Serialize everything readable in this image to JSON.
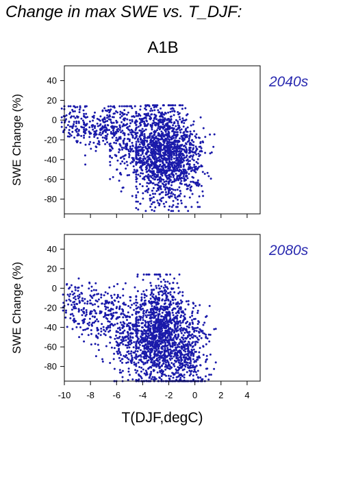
{
  "page": {
    "title": "Change in max SWE vs. T_DJF:",
    "scenario": "A1B"
  },
  "colors": {
    "points": "#1a1aaa",
    "period_label": "#2a2ab0"
  },
  "chart_data": [
    {
      "type": "scatter",
      "panel_label": "2040s",
      "ylabel": "SWE Change (%)",
      "xlabel": "",
      "xlim": [
        -10,
        5
      ],
      "ylim": [
        -95,
        55
      ],
      "xticks": [
        -10,
        -8,
        -6,
        -4,
        -2,
        0,
        2,
        4
      ],
      "yticks": [
        -80,
        -60,
        -40,
        -20,
        0,
        20,
        40
      ],
      "xtick_labels_shown": false,
      "clusters": [
        {
          "cx": -9.2,
          "cy": -2,
          "sx": 0.6,
          "sy": 12,
          "n": 90,
          "xmin": -10.2,
          "xmax": -7.5,
          "ymin": -55,
          "ymax": 14
        },
        {
          "cx": -7.0,
          "cy": -8,
          "sx": 0.9,
          "sy": 12,
          "n": 200,
          "xmin": -8.5,
          "xmax": -5.0,
          "ymin": -45,
          "ymax": 14
        },
        {
          "cx": -4.8,
          "cy": -22,
          "sx": 0.9,
          "sy": 20,
          "n": 280,
          "xmin": -6.5,
          "xmax": -3.0,
          "ymin": -82,
          "ymax": 14
        },
        {
          "cx": -2.6,
          "cy": -32,
          "sx": 1.0,
          "sy": 24,
          "n": 1150,
          "xmin": -4.5,
          "xmax": 0.6,
          "ymin": -92,
          "ymax": 15
        },
        {
          "cx": -0.8,
          "cy": -40,
          "sx": 0.8,
          "sy": 22,
          "n": 380,
          "xmin": -2.0,
          "xmax": 1.5,
          "ymin": -88,
          "ymax": 12
        }
      ]
    },
    {
      "type": "scatter",
      "panel_label": "2080s",
      "ylabel": "SWE Change (%)",
      "xlabel": "T(DJF,degC)",
      "xlim": [
        -10,
        5
      ],
      "ylim": [
        -95,
        55
      ],
      "xticks": [
        -10,
        -8,
        -6,
        -4,
        -2,
        0,
        2,
        4
      ],
      "yticks": [
        -80,
        -60,
        -40,
        -20,
        0,
        20,
        40
      ],
      "xtick_labels_shown": true,
      "clusters": [
        {
          "cx": -9.0,
          "cy": -18,
          "sx": 0.6,
          "sy": 14,
          "n": 110,
          "xmin": -10.1,
          "xmax": -7.5,
          "ymin": -50,
          "ymax": 10
        },
        {
          "cx": -7.0,
          "cy": -30,
          "sx": 0.8,
          "sy": 16,
          "n": 170,
          "xmin": -8.5,
          "xmax": -5.5,
          "ymin": -75,
          "ymax": 5
        },
        {
          "cx": -5.2,
          "cy": -50,
          "sx": 0.8,
          "sy": 22,
          "n": 250,
          "xmin": -6.5,
          "xmax": -3.8,
          "ymin": -95,
          "ymax": 5
        },
        {
          "cx": -2.7,
          "cy": -48,
          "sx": 1.0,
          "sy": 26,
          "n": 1250,
          "xmin": -4.5,
          "xmax": 0.4,
          "ymin": -95,
          "ymax": 14
        },
        {
          "cx": -0.5,
          "cy": -62,
          "sx": 0.8,
          "sy": 22,
          "n": 380,
          "xmin": -2.0,
          "xmax": 1.6,
          "ymin": -95,
          "ymax": 10
        }
      ]
    }
  ]
}
